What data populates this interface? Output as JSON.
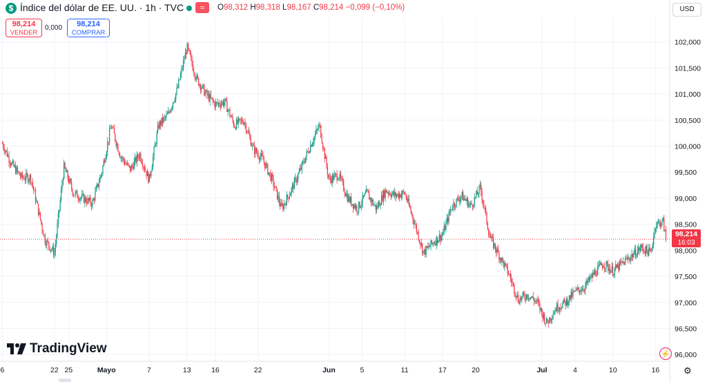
{
  "header": {
    "symbol_icon": "$",
    "title": "Índice del dólar de EE. UU. · 1h · TVC",
    "approx_icon": "≈",
    "ohlc": [
      {
        "k": "O",
        "v": "98,312"
      },
      {
        "k": "H",
        "v": "98,318"
      },
      {
        "k": "L",
        "v": "98,167"
      },
      {
        "k": "C",
        "v": "98,214"
      },
      {
        "k": "",
        "v": "−0,099 (−0,10%)"
      }
    ]
  },
  "trade": {
    "sell_price": "98,214",
    "sell_label": "VENDER",
    "spread": "0,000",
    "buy_price": "98,214",
    "buy_label": "COMPRAR"
  },
  "currency": "USD",
  "last_price": "98,214",
  "countdown": "16:03",
  "logo_text": "TradingView",
  "colors": {
    "up": "#089981",
    "down": "#f23645",
    "buy": "#2962ff"
  },
  "icons": {
    "symbol": "dollar-icon",
    "flash": "flash-icon",
    "settings": "gear-icon"
  },
  "chart_data": {
    "type": "candlestick",
    "interval": "1h",
    "last_close": 98.214,
    "y_ticks": [
      "102,000",
      "101,500",
      "101,000",
      "100,500",
      "100,000",
      "99,500",
      "99,000",
      "98,500",
      "98,000",
      "97,500",
      "97,000",
      "96,500",
      "96,000"
    ],
    "y_tick_values": [
      102.0,
      101.5,
      101.0,
      100.5,
      100.0,
      99.5,
      99.0,
      98.5,
      98.0,
      97.5,
      97.0,
      96.5,
      96.0
    ],
    "ylim": [
      95.87,
      102.46
    ],
    "x_ticks": [
      "6",
      "22",
      "25",
      "Mayo",
      "7",
      "13",
      "16",
      "22",
      "Jun",
      "5",
      "11",
      "17",
      "20",
      "Jul",
      "4",
      "10",
      "16"
    ],
    "x_tick_positions": [
      0,
      11,
      14,
      22,
      31,
      39,
      45,
      54,
      69,
      76,
      85,
      93,
      100,
      114,
      121,
      129,
      138
    ],
    "xlim": [
      -0.5,
      141
    ],
    "price_path": [
      [
        0,
        100.05
      ],
      [
        2,
        99.65
      ],
      [
        4,
        99.4
      ],
      [
        6,
        99.4
      ],
      [
        9,
        98.2
      ],
      [
        11,
        97.95
      ],
      [
        13,
        99.6
      ],
      [
        15,
        99.1
      ],
      [
        17,
        99.0
      ],
      [
        19,
        98.9
      ],
      [
        21,
        99.5
      ],
      [
        23,
        100.4
      ],
      [
        25,
        99.8
      ],
      [
        27,
        99.55
      ],
      [
        29,
        99.85
      ],
      [
        31,
        99.35
      ],
      [
        33,
        100.4
      ],
      [
        35,
        100.6
      ],
      [
        37,
        101.1
      ],
      [
        39,
        101.9
      ],
      [
        41,
        101.3
      ],
      [
        43,
        101.0
      ],
      [
        45,
        100.8
      ],
      [
        47,
        100.85
      ],
      [
        49,
        100.4
      ],
      [
        51,
        100.5
      ],
      [
        53,
        99.95
      ],
      [
        55,
        99.75
      ],
      [
        57,
        99.35
      ],
      [
        59,
        98.8
      ],
      [
        61,
        99.15
      ],
      [
        63,
        99.55
      ],
      [
        65,
        100.0
      ],
      [
        67,
        100.4
      ],
      [
        69,
        99.35
      ],
      [
        71,
        99.45
      ],
      [
        73,
        99.0
      ],
      [
        75,
        98.8
      ],
      [
        77,
        99.1
      ],
      [
        79,
        98.8
      ],
      [
        81,
        99.15
      ],
      [
        83,
        99.05
      ],
      [
        85,
        99.1
      ],
      [
        87,
        98.55
      ],
      [
        89,
        97.95
      ],
      [
        91,
        98.15
      ],
      [
        93,
        98.3
      ],
      [
        95,
        98.85
      ],
      [
        97,
        99.05
      ],
      [
        99,
        98.85
      ],
      [
        101,
        99.2
      ],
      [
        103,
        98.25
      ],
      [
        105,
        97.9
      ],
      [
        107,
        97.55
      ],
      [
        109,
        97.05
      ],
      [
        111,
        97.15
      ],
      [
        113,
        97.0
      ],
      [
        115,
        96.6
      ],
      [
        117,
        96.9
      ],
      [
        119,
        97.0
      ],
      [
        121,
        97.2
      ],
      [
        123,
        97.3
      ],
      [
        125,
        97.55
      ],
      [
        127,
        97.75
      ],
      [
        129,
        97.6
      ],
      [
        131,
        97.75
      ],
      [
        133,
        97.9
      ],
      [
        135,
        98.05
      ],
      [
        137,
        97.95
      ],
      [
        138,
        98.5
      ],
      [
        139.6,
        98.55
      ],
      [
        140.2,
        98.214
      ]
    ]
  }
}
